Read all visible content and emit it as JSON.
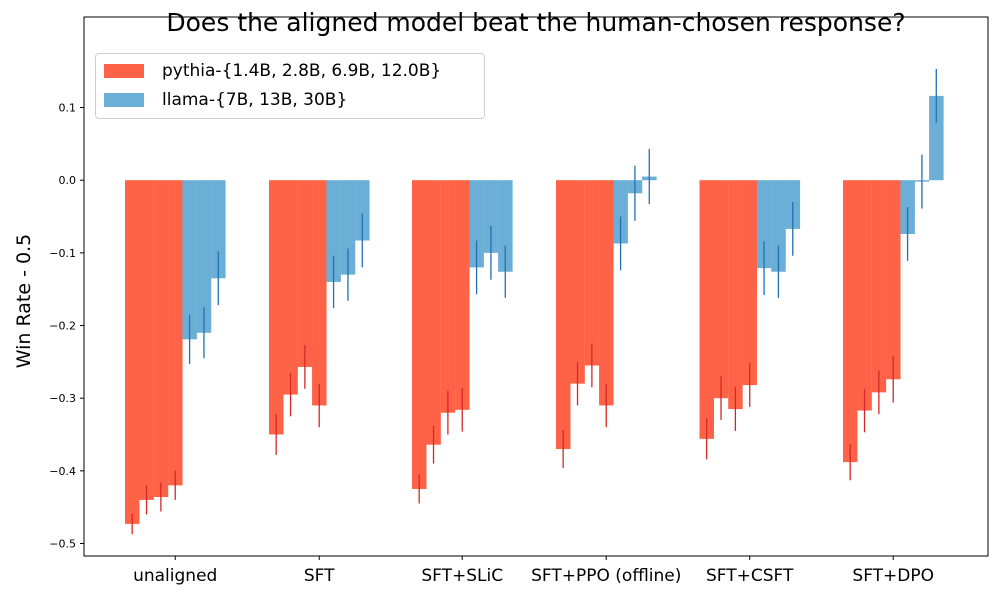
{
  "chart_data": {
    "type": "bar",
    "title": "Does the aligned model beat the human-chosen response?",
    "xlabel": "",
    "ylabel": "Win Rate - 0.5",
    "ylim": [
      -0.52,
      0.19
    ],
    "yticks": [
      -0.5,
      -0.4,
      -0.3,
      -0.2,
      -0.1,
      0.0,
      0.1
    ],
    "ytick_labels": [
      "−0.5",
      "−0.4",
      "−0.3",
      "−0.2",
      "−0.1",
      "0.0",
      "0.1"
    ],
    "grid": false,
    "legend_position": "top-left",
    "categories": [
      "unaligned",
      "SFT",
      "SFT+SLiC",
      "SFT+PPO (offline)",
      "SFT+CSFT",
      "SFT+DPO"
    ],
    "groups": [
      {
        "name": "pythia-{1.4B, 2.8B, 6.9B, 12.0B}",
        "color": "#FF6347",
        "error_color": "#d62728",
        "bars": [
          [
            -0.473,
            -0.44,
            -0.436,
            -0.42
          ],
          [
            -0.35,
            -0.295,
            -0.257,
            -0.31
          ],
          [
            -0.425,
            -0.364,
            -0.32,
            -0.316
          ],
          [
            -0.37,
            -0.28,
            -0.255,
            -0.31
          ],
          [
            -0.356,
            -0.3,
            -0.315,
            -0.282
          ],
          [
            -0.388,
            -0.317,
            -0.292,
            -0.274
          ]
        ],
        "errors": [
          [
            0.014,
            0.02,
            0.02,
            0.02
          ],
          [
            0.028,
            0.03,
            0.03,
            0.03
          ],
          [
            0.02,
            0.026,
            0.03,
            0.03
          ],
          [
            0.026,
            0.03,
            0.03,
            0.03
          ],
          [
            0.028,
            0.03,
            0.03,
            0.03
          ],
          [
            0.025,
            0.03,
            0.03,
            0.032
          ]
        ]
      },
      {
        "name": "llama-{7B, 13B, 30B}",
        "color": "#6BAED6",
        "error_color": "#2171b5",
        "bars": [
          [
            -0.219,
            -0.21,
            -0.135
          ],
          [
            -0.14,
            -0.13,
            -0.083
          ],
          [
            -0.12,
            -0.1,
            -0.126
          ],
          [
            -0.087,
            -0.018,
            0.005
          ],
          [
            -0.121,
            -0.126,
            -0.067
          ],
          [
            -0.074,
            -0.002,
            0.116
          ]
        ],
        "errors": [
          [
            0.034,
            0.035,
            0.037
          ],
          [
            0.036,
            0.036,
            0.037
          ],
          [
            0.037,
            0.037,
            0.036
          ],
          [
            0.037,
            0.038,
            0.038
          ],
          [
            0.037,
            0.036,
            0.037
          ],
          [
            0.037,
            0.037,
            0.037
          ]
        ]
      }
    ]
  }
}
